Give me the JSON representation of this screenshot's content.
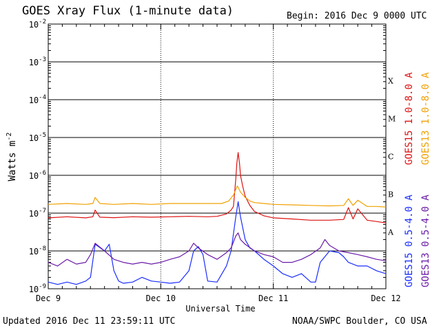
{
  "header": {
    "title": "GOES Xray Flux (1-minute data)",
    "begin": "Begin:  2016 Dec 9 0000 UTC"
  },
  "footer": {
    "updated": "Updated 2016 Dec 11 23:59:11 UTC",
    "source": "NOAA/SWPC Boulder, CO USA"
  },
  "colors": {
    "goes15_long": "#dd1111",
    "goes13_long": "#f0a000",
    "goes15_short": "#1a2cff",
    "goes13_short": "#6a1aa8",
    "grid": "#000000"
  },
  "chart_data": {
    "type": "line",
    "title": "GOES Xray Flux (1-minute data)",
    "xlabel": "Universal Time",
    "ylabel": "Watts m",
    "ylabel_sup": "-2",
    "yscale": "log",
    "ylim": [
      1e-09,
      0.01
    ],
    "xlim_hours": [
      0,
      72
    ],
    "y_ticks": [
      {
        "base": "10",
        "exp": "-2"
      },
      {
        "base": "10",
        "exp": "-3"
      },
      {
        "base": "10",
        "exp": "-4"
      },
      {
        "base": "10",
        "exp": "-5"
      },
      {
        "base": "10",
        "exp": "-6"
      },
      {
        "base": "10",
        "exp": "-7"
      },
      {
        "base": "10",
        "exp": "-8"
      },
      {
        "base": "10",
        "exp": "-9"
      }
    ],
    "x_ticks": [
      {
        "label": "Dec 9",
        "hour": 0
      },
      {
        "label": "Dec 10",
        "hour": 24
      },
      {
        "label": "Dec 11",
        "hour": 48
      },
      {
        "label": "Dec 12",
        "hour": 72
      }
    ],
    "flare_classes": [
      {
        "label": "X",
        "flux": 0.000316
      },
      {
        "label": "M",
        "flux": 3.16e-05
      },
      {
        "label": "C",
        "flux": 3.16e-06
      },
      {
        "label": "B",
        "flux": 3.16e-07
      },
      {
        "label": "A",
        "flux": 3.16e-08
      }
    ],
    "series": [
      {
        "name": "GOES15 1.0-8.0 A",
        "color_key": "goes15_long",
        "x": [
          0,
          4,
          8,
          9.5,
          10,
          11,
          14,
          18,
          22,
          26,
          30,
          34,
          36,
          38,
          39,
          39.5,
          40,
          40.2,
          40.5,
          40.8,
          41,
          41.5,
          42,
          43,
          44,
          46,
          48,
          52,
          56,
          58,
          60,
          63,
          64,
          65,
          66,
          68,
          70,
          72
        ],
        "y": [
          7.5e-08,
          8e-08,
          7.5e-08,
          8e-08,
          1.2e-07,
          7.8e-08,
          7.6e-08,
          8e-08,
          7.8e-08,
          8e-08,
          8.2e-08,
          8e-08,
          8.2e-08,
          9.5e-08,
          1.2e-07,
          1.5e-07,
          8e-07,
          2e-06,
          4e-06,
          2e-06,
          1e-06,
          5e-07,
          2.8e-07,
          1.6e-07,
          1.1e-07,
          8.5e-08,
          7.5e-08,
          7e-08,
          6.5e-08,
          6.5e-08,
          6.5e-08,
          6.8e-08,
          1.4e-07,
          7e-08,
          1.3e-07,
          6.5e-08,
          6e-08,
          5.5e-08
        ]
      },
      {
        "name": "GOES13 1.0-8.0 A",
        "color_key": "goes13_long",
        "x": [
          0,
          4,
          8,
          9.5,
          10,
          11,
          14,
          18,
          22,
          26,
          30,
          34,
          37,
          38.5,
          39.5,
          40,
          40.3,
          40.5,
          41,
          42,
          43,
          44,
          46,
          48,
          52,
          56,
          60,
          63,
          64,
          65,
          66,
          68,
          70,
          72
        ],
        "y": [
          1.7e-07,
          1.8e-07,
          1.7e-07,
          1.8e-07,
          2.6e-07,
          1.8e-07,
          1.7e-07,
          1.8e-07,
          1.7e-07,
          1.8e-07,
          1.8e-07,
          1.8e-07,
          1.8e-07,
          2.1e-07,
          3e-07,
          4.2e-07,
          5.2e-07,
          4.8e-07,
          3.6e-07,
          2.6e-07,
          2.1e-07,
          1.9e-07,
          1.8e-07,
          1.7e-07,
          1.65e-07,
          1.6e-07,
          1.55e-07,
          1.6e-07,
          2.4e-07,
          1.6e-07,
          2.2e-07,
          1.5e-07,
          1.5e-07,
          1.45e-07
        ]
      },
      {
        "name": "GOES15 0.5-4.0 A",
        "color_key": "goes15_short",
        "x": [
          0,
          2,
          4,
          6,
          8,
          9,
          10,
          12,
          13,
          14,
          15,
          16,
          18,
          20,
          22,
          24,
          26,
          28,
          30,
          31,
          32,
          33,
          34,
          36,
          38,
          39,
          40,
          40.5,
          41,
          42,
          43,
          44,
          46,
          48,
          50,
          52,
          54,
          56,
          57,
          58,
          60,
          62,
          63,
          64,
          66,
          68,
          70,
          72
        ],
        "y": [
          1.5e-09,
          1.3e-09,
          1.5e-09,
          1.3e-09,
          1.6e-09,
          2e-09,
          1.5e-08,
          1e-08,
          1.5e-08,
          3e-09,
          1.6e-09,
          1.4e-09,
          1.5e-09,
          2e-09,
          1.6e-09,
          1.5e-09,
          1.4e-09,
          1.5e-09,
          3e-09,
          1e-08,
          1.3e-08,
          8e-09,
          1.6e-09,
          1.5e-09,
          4e-09,
          1e-08,
          8e-08,
          2e-07,
          8e-08,
          2e-08,
          1.2e-08,
          1e-08,
          6e-09,
          4e-09,
          2.5e-09,
          2e-09,
          2.5e-09,
          1.5e-09,
          1.5e-09,
          5e-09,
          1e-08,
          9e-09,
          7e-09,
          5e-09,
          4e-09,
          4e-09,
          3e-09,
          2.5e-09
        ]
      },
      {
        "name": "GOES13 0.5-4.0 A",
        "color_key": "goes13_short",
        "x": [
          0,
          2,
          4,
          6,
          8,
          9,
          10,
          12,
          14,
          16,
          18,
          20,
          22,
          24,
          26,
          28,
          30,
          31,
          32,
          34,
          36,
          38,
          39,
          40,
          40.5,
          41,
          42,
          44,
          46,
          48,
          50,
          52,
          54,
          56,
          58,
          59,
          60,
          62,
          64,
          66,
          68,
          70,
          72
        ],
        "y": [
          5e-09,
          4e-09,
          6e-09,
          4.5e-09,
          5e-09,
          8e-09,
          1.6e-08,
          1e-08,
          6e-09,
          5e-09,
          4.5e-09,
          5e-09,
          4.5e-09,
          5e-09,
          6e-09,
          7e-09,
          1e-08,
          1.6e-08,
          1.2e-08,
          8e-09,
          6e-09,
          9e-09,
          1.2e-08,
          2.5e-08,
          3e-08,
          2e-08,
          1.5e-08,
          1e-08,
          8e-09,
          7e-09,
          5e-09,
          5e-09,
          6e-09,
          8e-09,
          1.2e-08,
          2e-08,
          1.4e-08,
          1e-08,
          9e-09,
          8e-09,
          7e-09,
          6e-09,
          5.5e-09
        ]
      }
    ],
    "legend_placement": "right-vertical"
  }
}
